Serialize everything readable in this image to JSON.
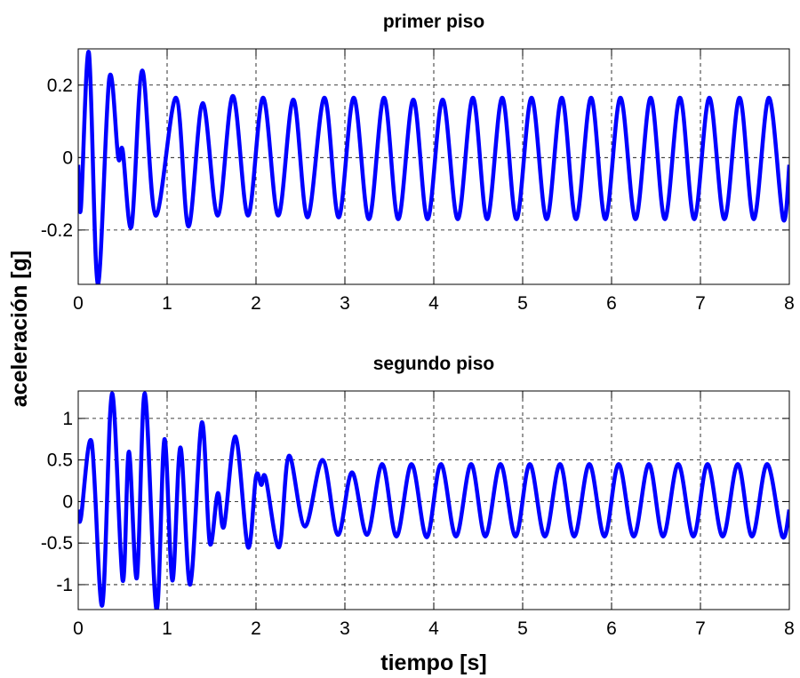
{
  "chart_data": [
    {
      "type": "line",
      "title": "primer piso",
      "ylabel": "aceleración [g]",
      "color": "#0000ff",
      "grid": true,
      "xlim": [
        0,
        8
      ],
      "xticks": [
        0,
        1,
        2,
        3,
        4,
        5,
        6,
        7,
        8
      ],
      "ylim": [
        -0.35,
        0.3
      ],
      "yticks": [
        -0.2,
        0,
        0.2
      ],
      "x": [
        0,
        0.03,
        0.12,
        0.22,
        0.35,
        0.45,
        0.5,
        0.6,
        0.72,
        0.87,
        1.1,
        1.24,
        1.4,
        1.57,
        1.74,
        1.91,
        2.08,
        2.25,
        2.42,
        2.58,
        2.77,
        2.93,
        3.1,
        3.27,
        3.44,
        3.6,
        3.77,
        3.93,
        4.1,
        4.27,
        4.44,
        4.6,
        4.77,
        4.93,
        5.1,
        5.27,
        5.44,
        5.6,
        5.77,
        5.93,
        6.1,
        6.27,
        6.44,
        6.6,
        6.77,
        6.93,
        7.1,
        7.27,
        7.44,
        7.6,
        7.77,
        7.93,
        8.0
      ],
      "values": [
        -0.02,
        -0.14,
        0.29,
        -0.35,
        0.22,
        0.0,
        0.02,
        -0.19,
        0.24,
        -0.16,
        0.165,
        -0.19,
        0.15,
        -0.16,
        0.17,
        -0.16,
        0.165,
        -0.16,
        0.16,
        -0.165,
        0.165,
        -0.165,
        0.165,
        -0.17,
        0.165,
        -0.17,
        0.16,
        -0.17,
        0.16,
        -0.17,
        0.165,
        -0.17,
        0.165,
        -0.17,
        0.165,
        -0.17,
        0.165,
        -0.17,
        0.165,
        -0.17,
        0.165,
        -0.17,
        0.165,
        -0.17,
        0.165,
        -0.17,
        0.165,
        -0.17,
        0.165,
        -0.17,
        0.165,
        -0.17,
        -0.02
      ]
    },
    {
      "type": "line",
      "title": "segundo piso",
      "xlabel": "tiempo [s]",
      "color": "#0000ff",
      "grid": true,
      "xlim": [
        0,
        8
      ],
      "xticks": [
        0,
        1,
        2,
        3,
        4,
        5,
        6,
        7,
        8
      ],
      "ylim": [
        -1.3,
        1.33
      ],
      "yticks": [
        -1,
        -0.5,
        0,
        0.5,
        1
      ],
      "x": [
        0,
        0.03,
        0.15,
        0.27,
        0.38,
        0.5,
        0.57,
        0.66,
        0.75,
        0.88,
        0.97,
        1.06,
        1.15,
        1.26,
        1.39,
        1.48,
        1.57,
        1.64,
        1.77,
        1.91,
        2.0,
        2.06,
        2.11,
        2.26,
        2.37,
        2.55,
        2.75,
        2.92,
        3.08,
        3.25,
        3.42,
        3.58,
        3.75,
        3.92,
        4.08,
        4.25,
        4.42,
        4.58,
        4.75,
        4.92,
        5.08,
        5.25,
        5.42,
        5.58,
        5.75,
        5.92,
        6.08,
        6.25,
        6.42,
        6.58,
        6.75,
        6.92,
        7.08,
        7.25,
        7.42,
        7.58,
        7.75,
        7.92,
        8.0
      ],
      "values": [
        -0.1,
        -0.2,
        0.72,
        -1.25,
        1.3,
        -0.95,
        0.6,
        -0.92,
        1.3,
        -1.3,
        0.75,
        -0.95,
        0.65,
        -1.0,
        0.95,
        -0.5,
        0.1,
        -0.3,
        0.78,
        -0.55,
        0.3,
        0.2,
        0.28,
        -0.55,
        0.55,
        -0.3,
        0.5,
        -0.4,
        0.35,
        -0.4,
        0.45,
        -0.42,
        0.45,
        -0.43,
        0.45,
        -0.42,
        0.45,
        -0.42,
        0.45,
        -0.42,
        0.45,
        -0.42,
        0.45,
        -0.42,
        0.45,
        -0.42,
        0.45,
        -0.42,
        0.45,
        -0.42,
        0.45,
        -0.42,
        0.45,
        -0.42,
        0.45,
        -0.42,
        0.45,
        -0.42,
        -0.1
      ]
    }
  ]
}
